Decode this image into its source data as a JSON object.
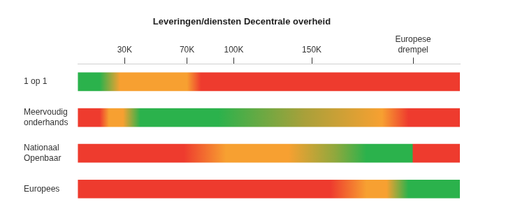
{
  "chart_data": {
    "type": "bar",
    "orientation": "horizontal",
    "title": "Leveringen/diensten Decentrale overheid",
    "categories": [
      "1 op 1",
      [
        "Meervoudig",
        "onderhands"
      ],
      [
        "Nationaal",
        "Openbaar"
      ],
      "Europees"
    ],
    "values": [
      [
        0,
        245
      ],
      [
        0,
        245
      ],
      [
        0,
        245
      ],
      [
        0,
        245
      ]
    ],
    "gradients": [
      {
        "x": [
          0,
          14,
          27,
          70,
          79,
          245
        ],
        "colors": [
          "#2bb24c",
          "#2bb24c",
          "#f7a031",
          "#f7a031",
          "#ee3b2e",
          "#ee3b2e"
        ]
      },
      {
        "x": [
          0,
          14,
          20,
          29,
          40,
          90,
          145,
          195,
          212,
          245
        ],
        "colors": [
          "#ee3b2e",
          "#ee3b2e",
          "#f7a031",
          "#f7a031",
          "#2bb24c",
          "#2bb24c",
          "#a8a03a",
          "#f7a031",
          "#ee3b2e",
          "#ee3b2e"
        ]
      },
      {
        "x": [
          0,
          68,
          95,
          135,
          165,
          185,
          214.5,
          215,
          245
        ],
        "colors": [
          "#ee3b2e",
          "#ee3b2e",
          "#f7a031",
          "#f7a031",
          "#8fa83d",
          "#2bb24c",
          "#2bb24c",
          "#ee3b2e",
          "#ee3b2e"
        ]
      },
      {
        "x": [
          0,
          162,
          185,
          198,
          212,
          245
        ],
        "colors": [
          "#ee3b2e",
          "#ee3b2e",
          "#f7a031",
          "#f7a031",
          "#2bb24c",
          "#2bb24c"
        ]
      }
    ],
    "xlim": [
      0,
      245
    ],
    "xticks": [
      {
        "value": 30,
        "label": "30K"
      },
      {
        "value": 70,
        "label": "70K"
      },
      {
        "value": 100,
        "label": "100K"
      },
      {
        "value": 150,
        "label": "150K"
      },
      {
        "value": 215,
        "label": [
          "Europese",
          "drempel"
        ]
      }
    ],
    "grid": false,
    "legend": false
  }
}
